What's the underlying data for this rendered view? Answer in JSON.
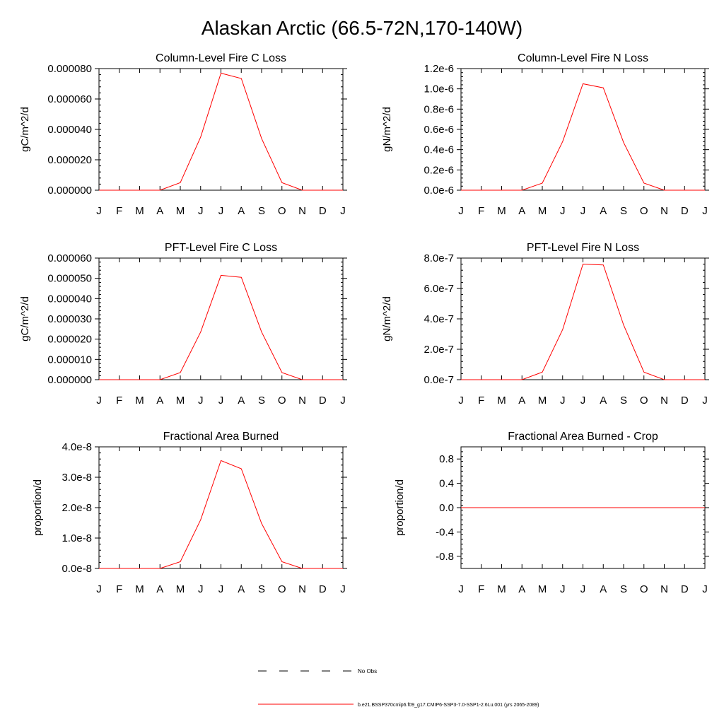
{
  "title": "Alaskan Arctic (66.5-72N,170-140W)",
  "colors": {
    "series": "#ff0000",
    "axis": "#000000",
    "obs": "#000000"
  },
  "legend": {
    "entries": [
      {
        "label": "No Obs",
        "style": "dashed",
        "color": "#000000"
      },
      {
        "label": "b.e21.BSSP370cmip6.f09_g17.CMIP6-SSP3-7.0-SSP1-2.6Lu.001 (yrs 2065-2089)",
        "style": "solid",
        "color": "#ff0000"
      }
    ]
  },
  "chart_data": [
    {
      "type": "line",
      "title": "Column-Level Fire C Loss",
      "ylabel": "gC/m^2/d",
      "xlabel": "",
      "x": [
        "J",
        "F",
        "M",
        "A",
        "M",
        "J",
        "J",
        "A",
        "S",
        "O",
        "N",
        "D",
        "J"
      ],
      "ylim": [
        0,
        8e-05
      ],
      "yticks": [
        0,
        2e-05,
        4e-05,
        6e-05,
        8e-05
      ],
      "yticklabels": [
        "0.000000",
        "0.000020",
        "0.000040",
        "0.000060",
        "0.000080"
      ],
      "series": [
        {
          "values": [
            0,
            0,
            0,
            0,
            5e-06,
            3.5e-05,
            7.7e-05,
            7.35e-05,
            3.4e-05,
            5e-06,
            0,
            0,
            0
          ]
        }
      ]
    },
    {
      "type": "line",
      "title": "Column-Level Fire N Loss",
      "ylabel": "gN/m^2/d",
      "xlabel": "",
      "x": [
        "J",
        "F",
        "M",
        "A",
        "M",
        "J",
        "J",
        "A",
        "S",
        "O",
        "N",
        "D",
        "J"
      ],
      "ylim": [
        0,
        1.2e-06
      ],
      "yticks": [
        0,
        2e-07,
        4e-07,
        6e-07,
        8e-07,
        1e-06,
        1.2e-06
      ],
      "yticklabels": [
        "0.0e-6",
        "0.2e-6",
        "0.4e-6",
        "0.6e-6",
        "0.8e-6",
        "1.0e-6",
        "1.2e-6"
      ],
      "series": [
        {
          "values": [
            0,
            0,
            0,
            0,
            7e-08,
            4.8e-07,
            1.05e-06,
            1.01e-06,
            4.7e-07,
            7e-08,
            0,
            0,
            0
          ]
        }
      ]
    },
    {
      "type": "line",
      "title": "PFT-Level Fire C Loss",
      "ylabel": "gC/m^2/d",
      "xlabel": "",
      "x": [
        "J",
        "F",
        "M",
        "A",
        "M",
        "J",
        "J",
        "A",
        "S",
        "O",
        "N",
        "D",
        "J"
      ],
      "ylim": [
        0,
        6e-05
      ],
      "yticks": [
        0,
        1e-05,
        2e-05,
        3e-05,
        4e-05,
        5e-05,
        6e-05
      ],
      "yticklabels": [
        "0.000000",
        "0.000010",
        "0.000020",
        "0.000030",
        "0.000040",
        "0.000050",
        "0.000060"
      ],
      "series": [
        {
          "values": [
            0,
            0,
            0,
            0,
            3.5e-06,
            2.35e-05,
            5.15e-05,
            5.05e-05,
            2.35e-05,
            3.5e-06,
            0,
            0,
            0
          ]
        }
      ]
    },
    {
      "type": "line",
      "title": "PFT-Level Fire N Loss",
      "ylabel": "gN/m^2/d",
      "xlabel": "",
      "x": [
        "J",
        "F",
        "M",
        "A",
        "M",
        "J",
        "J",
        "A",
        "S",
        "O",
        "N",
        "D",
        "J"
      ],
      "ylim": [
        0,
        8e-07
      ],
      "yticks": [
        0,
        2e-07,
        4e-07,
        6e-07,
        8e-07
      ],
      "yticklabels": [
        "0.0e-7",
        "2.0e-7",
        "4.0e-7",
        "6.0e-7",
        "8.0e-7"
      ],
      "series": [
        {
          "values": [
            0,
            0,
            0,
            0,
            5e-08,
            3.3e-07,
            7.6e-07,
            7.55e-07,
            3.6e-07,
            5e-08,
            0,
            0,
            0
          ]
        }
      ]
    },
    {
      "type": "line",
      "title": "Fractional Area Burned",
      "ylabel": "proportion/d",
      "xlabel": "",
      "x": [
        "J",
        "F",
        "M",
        "A",
        "M",
        "J",
        "J",
        "A",
        "S",
        "O",
        "N",
        "D",
        "J"
      ],
      "ylim": [
        0,
        4e-08
      ],
      "yticks": [
        0,
        1e-08,
        2e-08,
        3e-08,
        4e-08
      ],
      "yticklabels": [
        "0.0e-8",
        "1.0e-8",
        "2.0e-8",
        "3.0e-8",
        "4.0e-8"
      ],
      "series": [
        {
          "values": [
            0,
            0,
            0,
            0,
            2.2e-09,
            1.6e-08,
            3.55e-08,
            3.28e-08,
            1.48e-08,
            2.2e-09,
            0,
            0,
            0
          ]
        }
      ]
    },
    {
      "type": "line",
      "title": "Fractional Area Burned - Crop",
      "ylabel": "proportion/d",
      "xlabel": "",
      "x": [
        "J",
        "F",
        "M",
        "A",
        "M",
        "J",
        "J",
        "A",
        "S",
        "O",
        "N",
        "D",
        "J"
      ],
      "ylim": [
        -1,
        1
      ],
      "yticks": [
        -0.8,
        -0.4,
        0,
        0.4,
        0.8
      ],
      "yticklabels": [
        "-0.8",
        "-0.4",
        "0.0",
        "0.4",
        "0.8"
      ],
      "series": [
        {
          "values": [
            0,
            0,
            0,
            0,
            0,
            0,
            0,
            0,
            0,
            0,
            0,
            0,
            0
          ]
        }
      ]
    }
  ]
}
